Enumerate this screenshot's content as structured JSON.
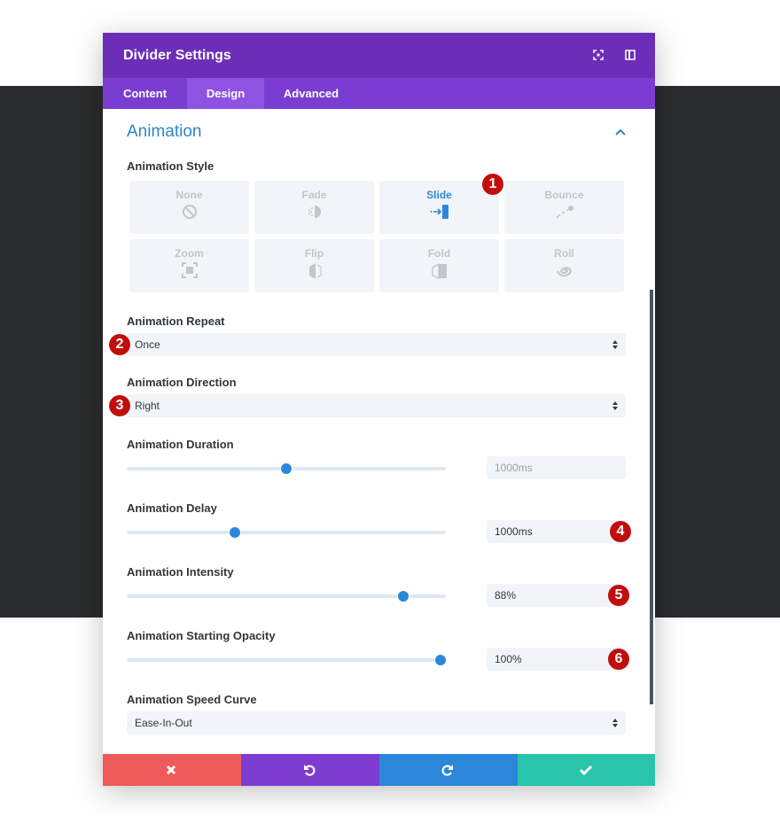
{
  "header": {
    "title": "Divider Settings"
  },
  "tabs": [
    "Content",
    "Design",
    "Advanced"
  ],
  "section": {
    "title": "Animation"
  },
  "animation_style": {
    "label": "Animation Style",
    "options": [
      "None",
      "Fade",
      "Slide",
      "Bounce",
      "Zoom",
      "Flip",
      "Fold",
      "Roll"
    ]
  },
  "fields": [
    {
      "label": "Animation Repeat",
      "value": "Once"
    },
    {
      "label": "Animation Direction",
      "value": "Right"
    },
    {
      "label": "Animation Duration",
      "value": "1000ms"
    },
    {
      "label": "Animation Delay",
      "value": "1000ms"
    },
    {
      "label": "Animation Intensity",
      "value": "88%"
    },
    {
      "label": "Animation Starting Opacity",
      "value": "100%"
    },
    {
      "label": "Animation Speed Curve",
      "value": "Ease-In-Out"
    }
  ],
  "badges": [
    1,
    2,
    3,
    4,
    5,
    6
  ]
}
